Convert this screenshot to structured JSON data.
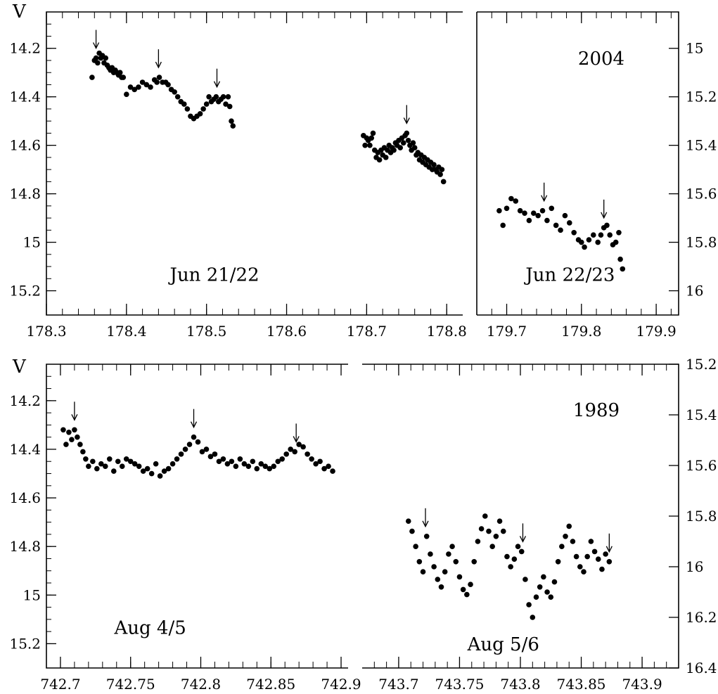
{
  "chart_data": [
    {
      "type": "scatter",
      "title": "2004",
      "ylabel": "V",
      "y_inverted": true,
      "x_axis_break": true,
      "ylim_left": [
        14.05,
        15.3
      ],
      "ylim_right": [
        14.85,
        16.1
      ],
      "panels": [
        {
          "xlim": [
            178.3,
            178.82
          ],
          "x_ticks": [
            "178.3",
            "178.4",
            "178.5",
            "178.6",
            "178.7",
            "178.8"
          ],
          "x_tick_values": [
            178.3,
            178.4,
            178.5,
            178.6,
            178.7,
            178.8
          ],
          "axis": "left",
          "annotations": [
            {
              "text": "Jun 21/22",
              "x": 178.51,
              "y": 15.16
            }
          ],
          "arrows_x": [
            178.362,
            178.44,
            178.513,
            178.75
          ],
          "series": [
            {
              "x": [
                178.357,
                178.36,
                178.362,
                178.364,
                178.366,
                178.368,
                178.37,
                178.372,
                178.374,
                178.376,
                178.378,
                178.38,
                178.382,
                178.384,
                178.386,
                178.388,
                178.39,
                178.392,
                178.394,
                178.396,
                178.4,
                178.405,
                178.41,
                178.415,
                178.42,
                178.425,
                178.43,
                178.435,
                178.438,
                178.441,
                178.445,
                178.449,
                178.452,
                178.456,
                178.46,
                178.464,
                178.468,
                178.472,
                178.476,
                178.48,
                178.484,
                178.488,
                178.492,
                178.496,
                178.5,
                178.503,
                178.506,
                178.509,
                178.512,
                178.515,
                178.518,
                178.521,
                178.524,
                178.527,
                178.529,
                178.531,
                178.533
              ],
              "y": [
                14.32,
                14.25,
                14.24,
                14.26,
                14.22,
                14.24,
                14.23,
                14.26,
                14.24,
                14.27,
                14.28,
                14.29,
                14.28,
                14.3,
                14.29,
                14.3,
                14.31,
                14.3,
                14.32,
                14.32,
                14.39,
                14.36,
                14.37,
                14.36,
                14.34,
                14.35,
                14.36,
                14.33,
                14.34,
                14.32,
                14.34,
                14.34,
                14.35,
                14.37,
                14.38,
                14.4,
                14.42,
                14.43,
                14.45,
                14.48,
                14.49,
                14.48,
                14.47,
                14.45,
                14.43,
                14.4,
                14.42,
                14.41,
                14.4,
                14.42,
                14.41,
                14.4,
                14.43,
                14.4,
                14.44,
                14.5,
                14.52
              ]
            },
            {
              "x": [
                178.696,
                178.698,
                178.7,
                178.702,
                178.704,
                178.706,
                178.708,
                178.71,
                178.712,
                178.714,
                178.716,
                178.718,
                178.72,
                178.722,
                178.724,
                178.726,
                178.728,
                178.73,
                178.732,
                178.734,
                178.736,
                178.738,
                178.74,
                178.742,
                178.744,
                178.746,
                178.748,
                178.75,
                178.752,
                178.754,
                178.756,
                178.758,
                178.76,
                178.762,
                178.764,
                178.766,
                178.768,
                178.77,
                178.772,
                178.774,
                178.776,
                178.778,
                178.78,
                178.782,
                178.784,
                178.786,
                178.788,
                178.79,
                178.792,
                178.794,
                178.796
              ],
              "y": [
                14.56,
                14.6,
                14.57,
                14.58,
                14.6,
                14.57,
                14.55,
                14.62,
                14.65,
                14.63,
                14.66,
                14.62,
                14.64,
                14.61,
                14.65,
                14.62,
                14.6,
                14.63,
                14.61,
                14.62,
                14.59,
                14.6,
                14.58,
                14.61,
                14.57,
                14.59,
                14.56,
                14.55,
                14.58,
                14.6,
                14.62,
                14.59,
                14.61,
                14.64,
                14.63,
                14.66,
                14.64,
                14.67,
                14.65,
                14.68,
                14.66,
                14.69,
                14.67,
                14.7,
                14.68,
                14.7,
                14.71,
                14.69,
                14.72,
                14.7,
                14.75
              ]
            }
          ]
        },
        {
          "xlim": [
            179.66,
            179.93
          ],
          "x_ticks": [
            "179.7",
            "179.8",
            "179.9"
          ],
          "x_tick_values": [
            179.7,
            179.8,
            179.9
          ],
          "axis": "right",
          "annotations": [
            {
              "text": "Jun 22/23",
              "x": 179.785,
              "y": 15.96
            }
          ],
          "arrows_x": [
            179.75,
            179.83
          ],
          "series": [
            {
              "x": [
                179.69,
                179.695,
                179.7,
                179.706,
                179.712,
                179.718,
                179.724,
                179.73,
                179.736,
                179.742,
                179.748,
                179.754,
                179.76,
                179.766,
                179.772,
                179.778,
                179.784,
                179.79,
                179.796,
                179.8,
                179.804,
                179.81,
                179.816,
                179.822,
                179.826,
                179.83,
                179.834,
                179.838,
                179.842,
                179.846,
                179.85,
                179.852,
                179.855
              ],
              "y": [
                15.67,
                15.73,
                15.66,
                15.62,
                15.63,
                15.67,
                15.68,
                15.71,
                15.68,
                15.69,
                15.67,
                15.71,
                15.66,
                15.73,
                15.75,
                15.69,
                15.72,
                15.76,
                15.79,
                15.8,
                15.82,
                15.79,
                15.77,
                15.8,
                15.77,
                15.74,
                15.73,
                15.77,
                15.81,
                15.8,
                15.76,
                15.87,
                15.91
              ]
            }
          ]
        }
      ]
    },
    {
      "type": "scatter",
      "title": "1989",
      "ylabel": "V",
      "y_inverted": true,
      "x_axis_break": true,
      "ylim_left": [
        14.05,
        15.3
      ],
      "ylim_right": [
        15.2,
        16.4
      ],
      "panels": [
        {
          "xlim": [
            742.69,
            742.905
          ],
          "x_ticks": [
            "742.7",
            "742.75",
            "742.8",
            "742.85",
            "742.9"
          ],
          "x_tick_values": [
            742.7,
            742.75,
            742.8,
            742.85,
            742.9
          ],
          "axis": "left",
          "annotations": [
            {
              "text": "Aug 4/5",
              "x": 742.764,
              "y": 15.16
            }
          ],
          "arrows_x": [
            742.71,
            742.795,
            742.868
          ],
          "series": [
            {
              "x": [
                742.702,
                742.704,
                742.706,
                742.708,
                742.71,
                742.712,
                742.714,
                742.716,
                742.718,
                742.72,
                742.723,
                742.726,
                742.729,
                742.732,
                742.735,
                742.738,
                742.741,
                742.744,
                742.747,
                742.75,
                742.753,
                742.756,
                742.759,
                742.762,
                742.765,
                742.768,
                742.771,
                742.774,
                742.777,
                742.78,
                742.783,
                742.786,
                742.789,
                742.792,
                742.795,
                742.798,
                742.801,
                742.804,
                742.807,
                742.81,
                742.813,
                742.816,
                742.819,
                742.822,
                742.825,
                742.828,
                742.831,
                742.834,
                742.837,
                742.84,
                742.843,
                742.846,
                742.849,
                742.852,
                742.855,
                742.858,
                742.861,
                742.864,
                742.867,
                742.87,
                742.873,
                742.876,
                742.879,
                742.882,
                742.885,
                742.888,
                742.891,
                742.894
              ],
              "y": [
                14.32,
                14.38,
                14.33,
                14.36,
                14.32,
                14.35,
                14.38,
                14.41,
                14.44,
                14.47,
                14.45,
                14.48,
                14.46,
                14.47,
                14.44,
                14.49,
                14.45,
                14.47,
                14.44,
                14.45,
                14.46,
                14.47,
                14.49,
                14.48,
                14.5,
                14.46,
                14.51,
                14.49,
                14.48,
                14.46,
                14.44,
                14.42,
                14.4,
                14.38,
                14.35,
                14.37,
                14.41,
                14.4,
                14.43,
                14.42,
                14.45,
                14.44,
                14.46,
                14.45,
                14.47,
                14.44,
                14.46,
                14.47,
                14.45,
                14.48,
                14.46,
                14.47,
                14.48,
                14.47,
                14.45,
                14.44,
                14.42,
                14.4,
                14.41,
                14.38,
                14.39,
                14.42,
                14.44,
                14.46,
                14.45,
                14.48,
                14.47,
                14.49
              ]
            }
          ]
        },
        {
          "xlim": [
            743.67,
            743.93
          ],
          "x_ticks": [
            "743.7",
            "743.75",
            "743.8",
            "743.85",
            "743.9"
          ],
          "x_tick_values": [
            743.7,
            743.75,
            743.8,
            743.85,
            743.9
          ],
          "axis": "right",
          "annotations": [
            {
              "text": "Aug 5/6",
              "x": 743.786,
              "y": 16.33
            }
          ],
          "arrows_x": [
            743.722,
            743.802,
            743.873
          ],
          "series": [
            {
              "x": [
                743.708,
                743.711,
                743.714,
                743.717,
                743.72,
                743.723,
                743.726,
                743.729,
                743.732,
                743.735,
                743.738,
                743.741,
                743.744,
                743.747,
                743.75,
                743.753,
                743.756,
                743.759,
                743.762,
                743.765,
                743.768,
                743.771,
                743.774,
                743.777,
                743.78,
                743.783,
                743.786,
                743.789,
                743.792,
                743.795,
                743.798,
                743.801,
                743.804,
                743.807,
                743.81,
                743.813,
                743.816,
                743.819,
                743.822,
                743.825,
                743.828,
                743.831,
                743.834,
                743.837,
                743.84,
                743.843,
                743.846,
                743.849,
                743.852,
                743.855,
                743.858,
                743.861,
                743.864,
                743.867,
                743.87,
                743.873
              ],
              "y": [
                15.82,
                15.86,
                15.92,
                15.98,
                16.02,
                15.88,
                15.95,
                16.0,
                16.05,
                16.08,
                16.02,
                15.95,
                15.92,
                15.98,
                16.04,
                16.09,
                16.11,
                16.07,
                15.98,
                15.9,
                15.85,
                15.8,
                15.86,
                15.92,
                15.88,
                15.82,
                15.86,
                15.96,
                16.0,
                15.97,
                15.92,
                15.94,
                16.05,
                16.15,
                16.2,
                16.12,
                16.08,
                16.04,
                16.1,
                16.12,
                16.06,
                15.98,
                15.92,
                15.88,
                15.84,
                15.9,
                15.96,
                16.0,
                16.02,
                15.96,
                15.9,
                15.94,
                15.97,
                16.01,
                15.95,
                15.98
              ]
            }
          ]
        }
      ]
    }
  ]
}
